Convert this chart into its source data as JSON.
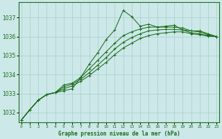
{
  "background_color": "#cce8e8",
  "grid_color": "#aacccc",
  "line_color": "#1a6b1a",
  "xlabel": "Graphe pression niveau de la mer (hPa)",
  "ylim": [
    1031.5,
    1037.8
  ],
  "xlim": [
    -0.3,
    23.3
  ],
  "yticks": [
    1032,
    1033,
    1034,
    1035,
    1036,
    1037
  ],
  "xticks": [
    0,
    1,
    2,
    3,
    4,
    5,
    6,
    7,
    8,
    9,
    10,
    11,
    12,
    13,
    14,
    15,
    16,
    17,
    18,
    19,
    20,
    21,
    22,
    23
  ],
  "series": [
    [
      1031.6,
      1032.15,
      1032.65,
      1032.95,
      1033.05,
      1033.15,
      1033.25,
      1033.85,
      1034.55,
      1035.15,
      1035.85,
      1036.35,
      1037.38,
      1037.05,
      1036.55,
      1036.65,
      1036.5,
      1036.55,
      1036.6,
      1036.35,
      1036.3,
      1036.3,
      1036.15,
      1036.0
    ],
    [
      1031.6,
      1032.15,
      1032.65,
      1032.95,
      1033.05,
      1033.45,
      1033.55,
      1033.85,
      1034.3,
      1034.75,
      1035.2,
      1035.65,
      1036.05,
      1036.25,
      1036.4,
      1036.5,
      1036.5,
      1036.5,
      1036.5,
      1036.45,
      1036.3,
      1036.25,
      1036.1,
      1036.0
    ],
    [
      1031.6,
      1032.15,
      1032.65,
      1032.95,
      1033.05,
      1033.35,
      1033.5,
      1033.75,
      1034.1,
      1034.5,
      1034.9,
      1035.35,
      1035.7,
      1035.95,
      1036.15,
      1036.3,
      1036.35,
      1036.38,
      1036.38,
      1036.35,
      1036.2,
      1036.15,
      1036.05,
      1036.0
    ],
    [
      1031.6,
      1032.15,
      1032.65,
      1032.95,
      1033.05,
      1033.25,
      1033.4,
      1033.65,
      1033.95,
      1034.3,
      1034.65,
      1035.05,
      1035.4,
      1035.65,
      1035.9,
      1036.05,
      1036.15,
      1036.2,
      1036.25,
      1036.25,
      1036.15,
      1036.1,
      1036.02,
      1036.0
    ]
  ]
}
